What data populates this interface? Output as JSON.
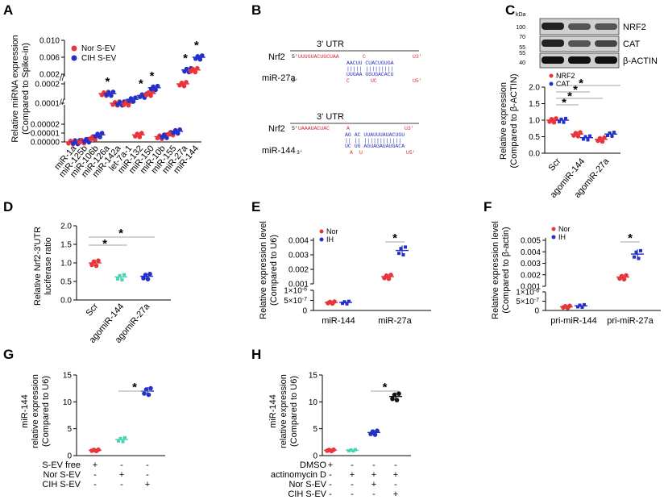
{
  "colors": {
    "red": "#e8343a",
    "blue": "#2430c7",
    "teal": "#46d6b4",
    "black": "#111111",
    "redtext": "#d8263a",
    "bluetext": "#2b33b8"
  },
  "panels": {
    "A": "A",
    "B": "B",
    "C": "C",
    "D": "D",
    "E": "E",
    "F": "F",
    "G": "G",
    "H": "H"
  },
  "chart_data": [
    {
      "panel": "A",
      "type": "scatter",
      "ylabel": [
        "Relative miRNA expression",
        "(Compared to Spike-in)"
      ],
      "yticks": [
        "0.00000",
        "0.00001",
        "0.00002",
        "0.0001",
        "0.0002",
        "0.002",
        "0.006",
        "0.010"
      ],
      "legend": [
        "Nor S-EV",
        "CIH S-EV"
      ],
      "legend_colors": [
        "red",
        "blue"
      ],
      "categories": [
        "miR-1a",
        "miR-125b",
        "miR-106b",
        "miR-126a",
        "miR-142a",
        "let-7a-1",
        "miR-132",
        "miR-150",
        "miR-10b",
        "miR-155",
        "miR-27a",
        "miR-144"
      ],
      "series": [
        {
          "name": "Nor S-EV",
          "values": [
            0.0,
            1e-06,
            5e-06,
            0.00015,
            0.0001,
            0.0001,
            8e-06,
            0.00015,
            6e-06,
            1e-05,
            0.0002,
            0.003
          ]
        },
        {
          "name": "CIH S-EV",
          "values": [
            0.0,
            2e-06,
            8e-06,
            0.00015,
            0.0001,
            0.00012,
            0.00014,
            0.00018,
            7e-06,
            1.2e-05,
            0.003,
            0.006
          ]
        }
      ],
      "significant": [
        "miR-126a",
        "miR-132",
        "miR-150",
        "miR-27a",
        "miR-144"
      ],
      "star": "*"
    },
    {
      "panel": "C",
      "type": "scatter",
      "blot": {
        "kda_label": "kDa",
        "markers": [
          "100",
          "70",
          "55",
          "55",
          "40"
        ],
        "bands": [
          "NRF2",
          "CAT",
          "β-ACTIN"
        ]
      },
      "ylabel": [
        "Relative expression",
        "(Compared to β-ACTIN)"
      ],
      "yticks": [
        "0.0",
        "0.5",
        "1.0",
        "1.5",
        "2.0"
      ],
      "ylim": [
        0,
        2.0
      ],
      "legend": [
        "NRF2",
        "CAT"
      ],
      "categories": [
        "Scr",
        "agomiR-144",
        "agomiR-27a"
      ],
      "series": [
        {
          "name": "NRF2",
          "values": [
            1.0,
            0.58,
            0.42
          ]
        },
        {
          "name": "CAT",
          "values": [
            1.0,
            0.47,
            0.58
          ]
        }
      ],
      "star": "*"
    },
    {
      "panel": "D",
      "type": "scatter",
      "ylabel": [
        "Relative Nrf2-3'UTR",
        "luciferase ratio"
      ],
      "yticks": [
        "0.0",
        "0.5",
        "1.0",
        "1.5",
        "2.0"
      ],
      "ylim": [
        0,
        2.0
      ],
      "categories": [
        "Scr",
        "agomiR-144",
        "agomiR-27a"
      ],
      "values": [
        1.0,
        0.62,
        0.64
      ],
      "star": "*"
    },
    {
      "panel": "E",
      "type": "scatter",
      "ylabel": [
        "Relative expression level",
        "(Compared to U6)"
      ],
      "yticks_low": [
        "0",
        "5×10",
        "1×10"
      ],
      "yticks_high": [
        "0.001",
        "0.002",
        "0.003",
        "0.004"
      ],
      "exp": "-7",
      "exp2": "-6",
      "legend": [
        "Nor",
        "IH"
      ],
      "categories": [
        "miR-144",
        "miR-27a"
      ],
      "series": [
        {
          "name": "Nor",
          "values": [
            4e-07,
            0.0015
          ]
        },
        {
          "name": "IH",
          "values": [
            4e-07,
            0.0033
          ]
        }
      ],
      "star": "*"
    },
    {
      "panel": "F",
      "type": "scatter",
      "ylabel": [
        "Relative expression level",
        "(Compared to β-actin)"
      ],
      "yticks_low": [
        "0",
        "5×10",
        "1×10"
      ],
      "yticks_high": [
        "0.001",
        "0.002",
        "0.003",
        "0.004",
        "0.005"
      ],
      "exp": "-7",
      "exp2": "-6",
      "legend": [
        "Nor",
        "IH"
      ],
      "categories": [
        "pri-miR-144",
        "pri-miR-27a"
      ],
      "series": [
        {
          "name": "Nor",
          "values": [
            2e-07,
            0.0018
          ]
        },
        {
          "name": "IH",
          "values": [
            2.5e-07,
            0.0038
          ]
        }
      ],
      "star": "*"
    },
    {
      "panel": "G",
      "type": "scatter",
      "ylabel": [
        "miR-144",
        "relative expression",
        "(Compared to U6)"
      ],
      "yticks": [
        "0",
        "5",
        "10",
        "15"
      ],
      "ylim": [
        0,
        15
      ],
      "values": [
        1.0,
        3.0,
        12.0
      ],
      "rows": [
        {
          "label": "S-EV free",
          "marks": [
            "+",
            "-",
            "-"
          ]
        },
        {
          "label": "Nor S-EV",
          "marks": [
            "-",
            "+",
            "-"
          ]
        },
        {
          "label": "CIH S-EV",
          "marks": [
            "-",
            "-",
            "+"
          ]
        }
      ],
      "star": "*"
    },
    {
      "panel": "H",
      "type": "scatter",
      "ylabel": [
        "miR-144",
        "relative expression",
        "(Compared to U6)"
      ],
      "yticks": [
        "0",
        "5",
        "10",
        "15"
      ],
      "ylim": [
        0,
        15
      ],
      "values": [
        1.0,
        1.0,
        4.3,
        11.0
      ],
      "rows": [
        {
          "label": "DMSO",
          "marks": [
            "+",
            "-",
            "-",
            "-"
          ]
        },
        {
          "label": "actinomycin D",
          "marks": [
            "-",
            "+",
            "+",
            "+"
          ]
        },
        {
          "label": "Nor S-EV",
          "marks": [
            "-",
            "-",
            "+",
            "-"
          ]
        },
        {
          "label": "CIH S-EV",
          "marks": [
            "-",
            "-",
            "-",
            "+"
          ]
        }
      ],
      "star": "*"
    }
  ],
  "B": {
    "utr": "3' UTR",
    "pair1": {
      "gene": "Nrf2",
      "mirna": "miR-27a",
      "top": "UUUGUACUGCUAA",
      "top_gap": "C",
      "top_end": "U3'",
      "five": "5'",
      "mid1": "AACUU  CUACUGUGA",
      "mid2": "|||||  |||||||||",
      "mid3": "UUGAA  GGUGACACU",
      "bot_a": "C",
      "bot_b": "UC",
      "bot_end": "U5'",
      "three": "3'"
    },
    "pair2": {
      "gene": "Nrf2",
      "mirna": "miR-144",
      "top": "UAAAUACUAC",
      "top_gap": "A",
      "top_end": "U3'",
      "five": "5'",
      "mid1": "AG AC UUAUUUAUACUGU",
      "mid2": "|| || ||||||||||||",
      "mid3": "UC UG AGUAGAUAUGACA",
      "bot_a": "A",
      "bot_b": "U",
      "bot_end": "U5'",
      "three": "3'"
    }
  }
}
